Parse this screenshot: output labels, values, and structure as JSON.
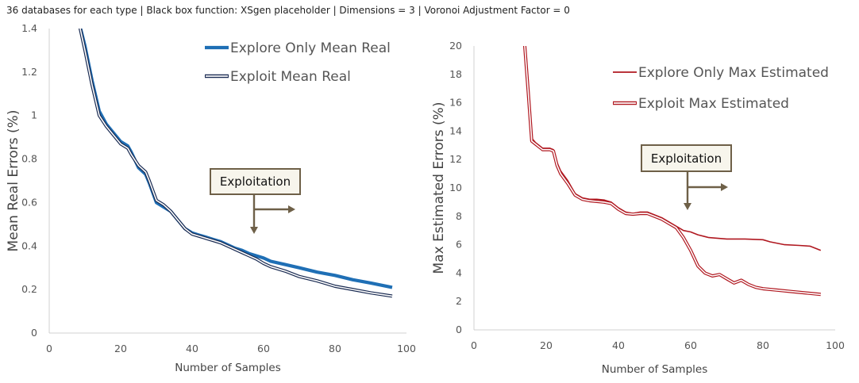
{
  "header": "36 databases for each type | Black box function: XSgen placeholder | Dimensions = 3 | Voronoi Adjustment Factor = 0",
  "chart_data": [
    {
      "type": "line",
      "xlabel": "Number of Samples",
      "ylabel": "Mean Real Errors (%)",
      "xlim": [
        0,
        100
      ],
      "ylim": [
        0,
        1.4
      ],
      "xticks": [
        "0",
        "20",
        "40",
        "60",
        "80",
        "100"
      ],
      "yticks": [
        "0",
        "0.2",
        "0.4",
        "0.6",
        "0.8",
        "1",
        "1.2",
        "1.4"
      ],
      "legend_position": "top-right",
      "annotation": "Exploitation",
      "annotation_at": 58,
      "series": [
        {
          "name": "Explore Only Mean Real",
          "color": "#1f6fb5",
          "style": "thick",
          "points": [
            [
              8,
              1.45
            ],
            [
              10,
              1.32
            ],
            [
              12,
              1.16
            ],
            [
              14,
              1.02
            ],
            [
              16,
              0.96
            ],
            [
              18,
              0.92
            ],
            [
              20,
              0.88
            ],
            [
              22,
              0.86
            ],
            [
              23,
              0.83
            ],
            [
              25,
              0.76
            ],
            [
              27,
              0.73
            ],
            [
              28,
              0.69
            ],
            [
              30,
              0.6
            ],
            [
              32,
              0.58
            ],
            [
              34,
              0.56
            ],
            [
              36,
              0.52
            ],
            [
              38,
              0.48
            ],
            [
              40,
              0.46
            ],
            [
              42,
              0.45
            ],
            [
              44,
              0.44
            ],
            [
              46,
              0.43
            ],
            [
              48,
              0.42
            ],
            [
              50,
              0.405
            ],
            [
              52,
              0.39
            ],
            [
              54,
              0.38
            ],
            [
              56,
              0.365
            ],
            [
              58,
              0.355
            ],
            [
              60,
              0.345
            ],
            [
              62,
              0.33
            ],
            [
              66,
              0.315
            ],
            [
              70,
              0.3
            ],
            [
              75,
              0.28
            ],
            [
              80,
              0.265
            ],
            [
              85,
              0.245
            ],
            [
              90,
              0.23
            ],
            [
              96,
              0.21
            ]
          ]
        },
        {
          "name": "Exploit Mean Real",
          "color": "#1a2b52",
          "style": "double",
          "points": [
            [
              8,
              1.45
            ],
            [
              10,
              1.3
            ],
            [
              12,
              1.14
            ],
            [
              14,
              1.0
            ],
            [
              16,
              0.95
            ],
            [
              18,
              0.91
            ],
            [
              20,
              0.87
            ],
            [
              22,
              0.85
            ],
            [
              23,
              0.82
            ],
            [
              25,
              0.77
            ],
            [
              27,
              0.74
            ],
            [
              28,
              0.7
            ],
            [
              30,
              0.61
            ],
            [
              32,
              0.59
            ],
            [
              34,
              0.56
            ],
            [
              36,
              0.52
            ],
            [
              38,
              0.48
            ],
            [
              40,
              0.455
            ],
            [
              42,
              0.445
            ],
            [
              44,
              0.435
            ],
            [
              46,
              0.425
            ],
            [
              48,
              0.415
            ],
            [
              50,
              0.4
            ],
            [
              52,
              0.385
            ],
            [
              54,
              0.37
            ],
            [
              56,
              0.355
            ],
            [
              58,
              0.34
            ],
            [
              60,
              0.32
            ],
            [
              62,
              0.305
            ],
            [
              66,
              0.285
            ],
            [
              70,
              0.26
            ],
            [
              75,
              0.24
            ],
            [
              80,
              0.215
            ],
            [
              85,
              0.2
            ],
            [
              90,
              0.185
            ],
            [
              96,
              0.17
            ]
          ]
        }
      ]
    },
    {
      "type": "line",
      "xlabel": "Number of Samples",
      "ylabel": "Max Estimated Errors (%)",
      "xlim": [
        0,
        100
      ],
      "ylim": [
        0,
        20
      ],
      "xticks": [
        "0",
        "20",
        "40",
        "60",
        "80",
        "100"
      ],
      "yticks": [
        "0",
        "2",
        "4",
        "6",
        "8",
        "10",
        "12",
        "14",
        "16",
        "18",
        "20"
      ],
      "legend_position": "top-right",
      "annotation": "Exploitation",
      "annotation_at": 59,
      "series": [
        {
          "name": "Explore Only Max Estimated",
          "color": "#b01820",
          "style": "thin",
          "points": [
            [
              14,
              20.2
            ],
            [
              15,
              17.0
            ],
            [
              16,
              13.5
            ],
            [
              17,
              13.2
            ],
            [
              18,
              13.0
            ],
            [
              19,
              12.8
            ],
            [
              21,
              12.8
            ],
            [
              22,
              12.7
            ],
            [
              23,
              11.8
            ],
            [
              24,
              11.2
            ],
            [
              26,
              10.5
            ],
            [
              28,
              9.6
            ],
            [
              30,
              9.3
            ],
            [
              32,
              9.2
            ],
            [
              34,
              9.2
            ],
            [
              36,
              9.15
            ],
            [
              38,
              9.0
            ],
            [
              40,
              8.6
            ],
            [
              42,
              8.3
            ],
            [
              44,
              8.2
            ],
            [
              46,
              8.3
            ],
            [
              48,
              8.3
            ],
            [
              50,
              8.1
            ],
            [
              52,
              7.9
            ],
            [
              54,
              7.6
            ],
            [
              56,
              7.3
            ],
            [
              58,
              7.0
            ],
            [
              60,
              6.9
            ],
            [
              62,
              6.7
            ],
            [
              65,
              6.5
            ],
            [
              70,
              6.4
            ],
            [
              75,
              6.4
            ],
            [
              80,
              6.35
            ],
            [
              82,
              6.2
            ],
            [
              86,
              6.0
            ],
            [
              90,
              5.95
            ],
            [
              93,
              5.9
            ],
            [
              96,
              5.6
            ]
          ]
        },
        {
          "name": "Exploit Max Estimated",
          "color": "#b01820",
          "style": "double",
          "points": [
            [
              14,
              20.2
            ],
            [
              15,
              16.8
            ],
            [
              16,
              13.3
            ],
            [
              17,
              13.1
            ],
            [
              18,
              12.9
            ],
            [
              19,
              12.7
            ],
            [
              21,
              12.7
            ],
            [
              22,
              12.6
            ],
            [
              23,
              11.6
            ],
            [
              24,
              11.0
            ],
            [
              26,
              10.3
            ],
            [
              28,
              9.5
            ],
            [
              30,
              9.2
            ],
            [
              32,
              9.1
            ],
            [
              34,
              9.05
            ],
            [
              36,
              9.0
            ],
            [
              38,
              8.9
            ],
            [
              40,
              8.5
            ],
            [
              42,
              8.2
            ],
            [
              44,
              8.15
            ],
            [
              46,
              8.2
            ],
            [
              48,
              8.2
            ],
            [
              50,
              8.0
            ],
            [
              52,
              7.8
            ],
            [
              54,
              7.5
            ],
            [
              56,
              7.2
            ],
            [
              58,
              6.5
            ],
            [
              60,
              5.6
            ],
            [
              62,
              4.5
            ],
            [
              64,
              4.0
            ],
            [
              66,
              3.8
            ],
            [
              68,
              3.9
            ],
            [
              70,
              3.6
            ],
            [
              72,
              3.3
            ],
            [
              74,
              3.5
            ],
            [
              76,
              3.2
            ],
            [
              78,
              3.0
            ],
            [
              80,
              2.9
            ],
            [
              84,
              2.8
            ],
            [
              88,
              2.7
            ],
            [
              92,
              2.6
            ],
            [
              96,
              2.5
            ]
          ]
        }
      ]
    }
  ]
}
